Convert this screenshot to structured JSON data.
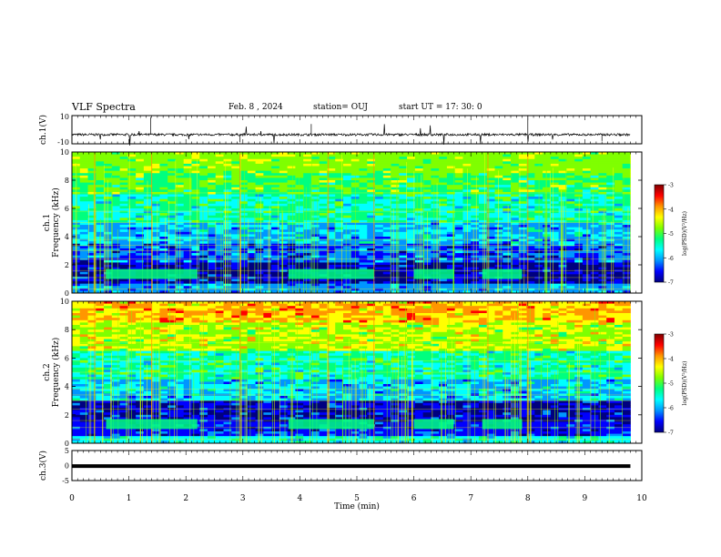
{
  "header": {
    "title": "VLF Spectra",
    "date": "Feb. 8 , 2024",
    "station": "station= OUJ",
    "start": "start UT = 17: 30: 0"
  },
  "colors": {
    "colormap": [
      "#00007f",
      "#0000ff",
      "#0096ff",
      "#00ffff",
      "#00ff7f",
      "#7fff00",
      "#ffff00",
      "#ff9600",
      "#ff0000",
      "#7f0000"
    ],
    "trace": "#000000"
  },
  "chart_data": [
    {
      "type": "line",
      "ylabel": "ch.1(V)",
      "ylim": [
        -10,
        10
      ],
      "yticks": [
        "10",
        "-10"
      ],
      "description_of_series": "noisy trace near -3.5 V with spikes",
      "x": [
        0,
        1,
        2,
        3,
        4,
        5,
        6,
        7,
        8,
        9,
        9.8
      ],
      "values": [
        -3.5,
        -3.5,
        -3.5,
        -3.5,
        -3.5,
        -3.5,
        -3.5,
        -3.5,
        -3.5,
        -3.5,
        -3.5
      ]
    },
    {
      "type": "heatmap",
      "ylabel": "Frequency (kHz)",
      "channel": "ch.1",
      "ylim": [
        0,
        10
      ],
      "yticks": [
        "0",
        "2",
        "4",
        "6",
        "8",
        "10"
      ],
      "xlim": [
        0,
        9.8
      ],
      "colorbar": {
        "label": "log(PSD)(V²/Hz)",
        "range": [
          -7,
          -3
        ],
        "ticks": [
          "-3",
          "-4",
          "-5",
          "-6",
          "-7"
        ]
      }
    },
    {
      "type": "heatmap",
      "ylabel": "Frequency (kHz)",
      "channel": "ch.2",
      "ylim": [
        0,
        10
      ],
      "yticks": [
        "0",
        "2",
        "4",
        "6",
        "8",
        "10"
      ],
      "xlim": [
        0,
        9.8
      ],
      "colorbar": {
        "label": "log(PSD)(V²/Hz)",
        "range": [
          -7,
          -3
        ],
        "ticks": [
          "-3",
          "-4",
          "-5",
          "-6",
          "-7"
        ]
      }
    },
    {
      "type": "line",
      "ylabel": "ch.3(V)",
      "ylim": [
        -5,
        5
      ],
      "yticks": [
        "5",
        "0",
        "-5"
      ],
      "x": [
        0,
        9.8
      ],
      "values": [
        -0.2,
        -0.2
      ]
    }
  ],
  "xaxis": {
    "label": "Time (min)",
    "xlim": [
      0,
      10
    ],
    "ticks": [
      "0",
      "1",
      "2",
      "3",
      "4",
      "5",
      "6",
      "7",
      "8",
      "9",
      "10"
    ]
  }
}
